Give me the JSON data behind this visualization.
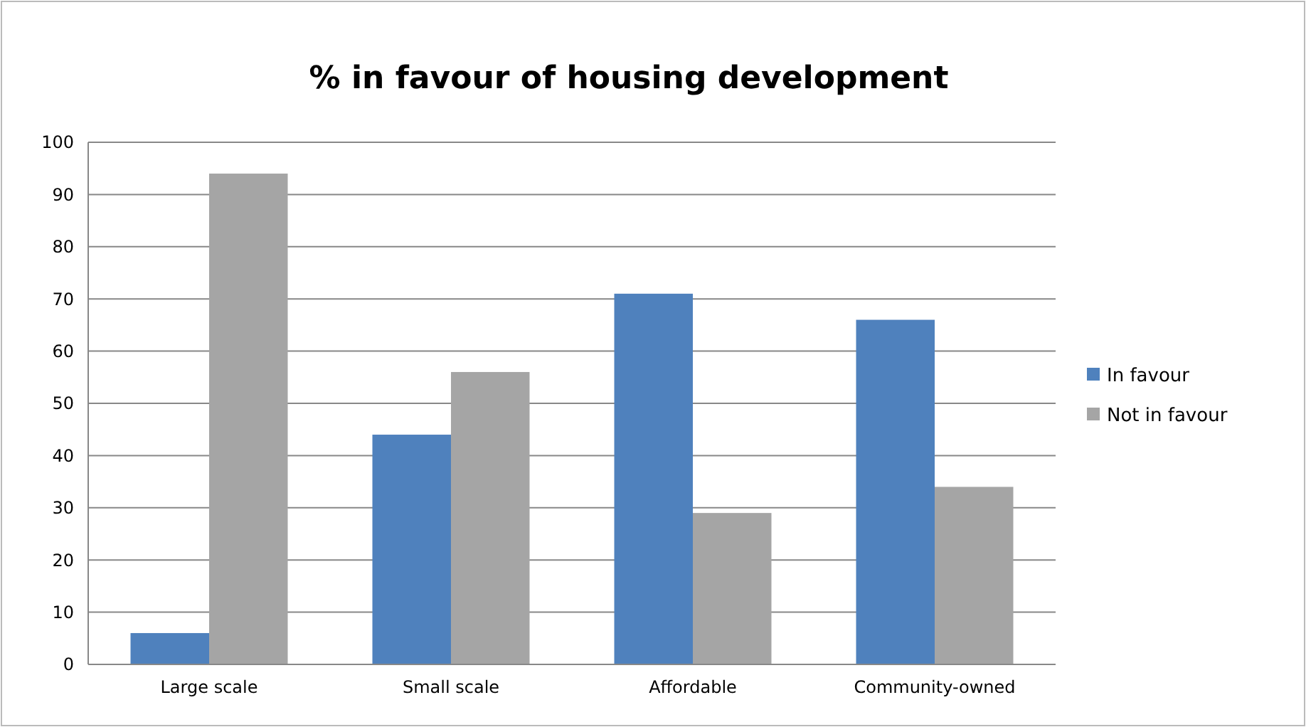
{
  "chart_data": {
    "type": "bar",
    "title": "% in favour of housing development",
    "categories": [
      "Large scale",
      "Small scale",
      "Affordable",
      "Community-owned"
    ],
    "series": [
      {
        "name": "In favour",
        "color": "#4f81bd",
        "values": [
          6,
          44,
          71,
          66
        ]
      },
      {
        "name": "Not in favour",
        "color": "#a5a5a5",
        "values": [
          94,
          56,
          29,
          34
        ]
      }
    ],
    "ylim": [
      0,
      100
    ],
    "yticks": [
      0,
      10,
      20,
      30,
      40,
      50,
      60,
      70,
      80,
      90,
      100
    ],
    "grid": "y",
    "legend": "right"
  }
}
